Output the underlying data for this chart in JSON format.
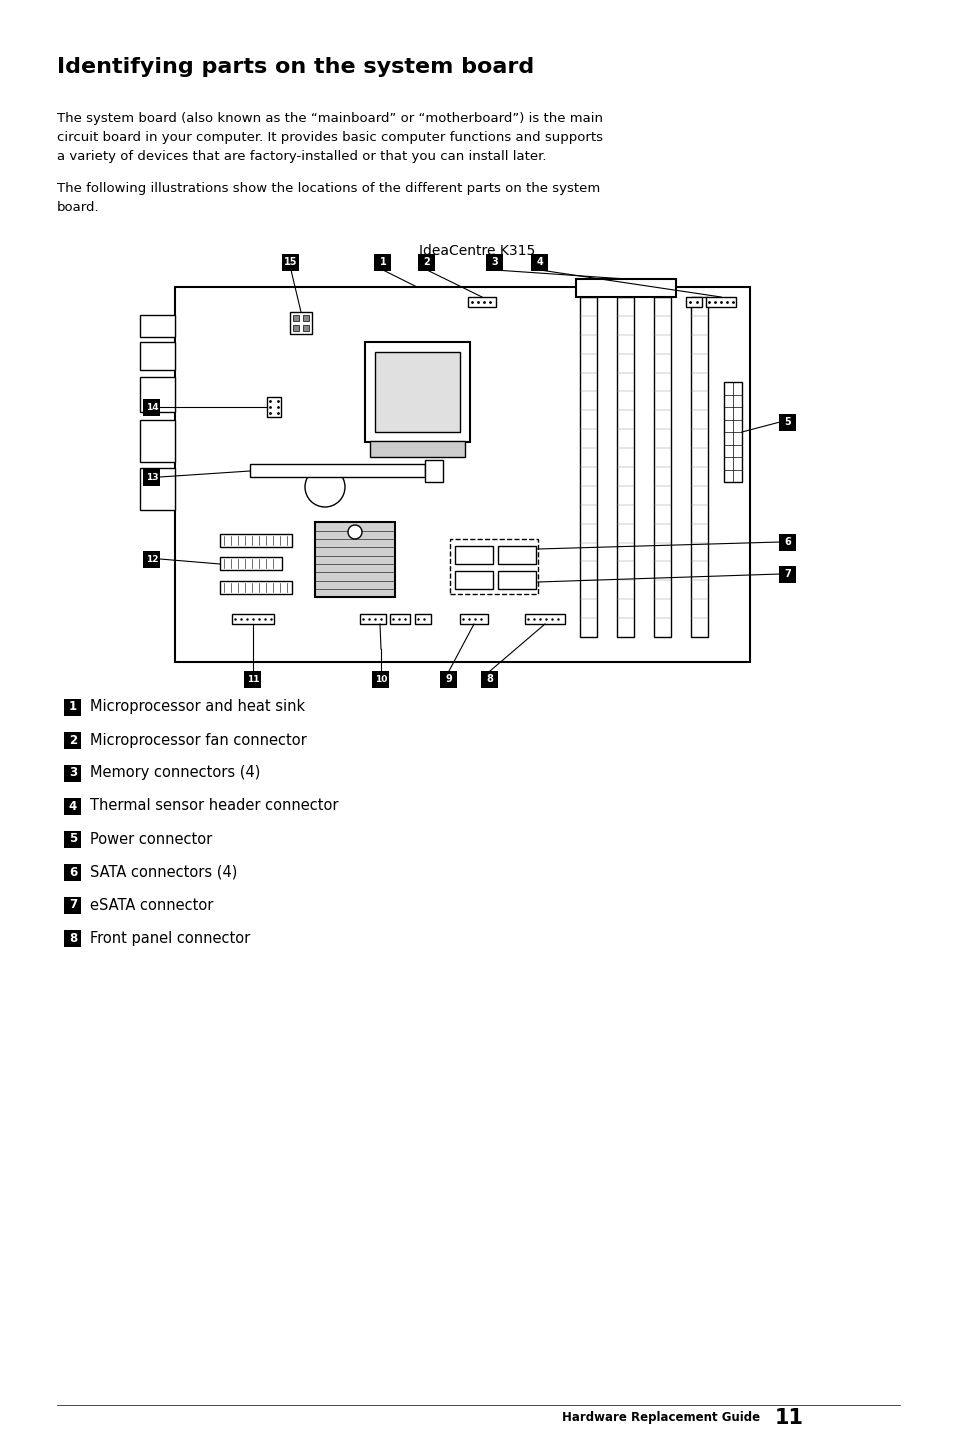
{
  "title": "Identifying parts on the system board",
  "para1_lines": [
    "The system board (also known as the “mainboard” or “motherboard”) is the main",
    "circuit board in your computer. It provides basic computer functions and supports",
    "a variety of devices that are factory-installed or that you can install later."
  ],
  "para2_lines": [
    "The following illustrations show the locations of the different parts on the system",
    "board."
  ],
  "diagram_label": "IdeaCentre K315",
  "items": [
    {
      "num": "1",
      "text": "Microprocessor and heat sink"
    },
    {
      "num": "2",
      "text": "Microprocessor fan connector"
    },
    {
      "num": "3",
      "text": "Memory connectors (4)"
    },
    {
      "num": "4",
      "text": "Thermal sensor header connector"
    },
    {
      "num": "5",
      "text": "Power connector"
    },
    {
      "num": "6",
      "text": "SATA connectors (4)"
    },
    {
      "num": "7",
      "text": "eSATA connector"
    },
    {
      "num": "8",
      "text": "Front panel connector"
    }
  ],
  "footer": "Hardware Replacement Guide",
  "page_num": "11",
  "bg_color": "#ffffff",
  "text_color": "#000000",
  "badge_color": "#000000",
  "badge_text_color": "#ffffff"
}
